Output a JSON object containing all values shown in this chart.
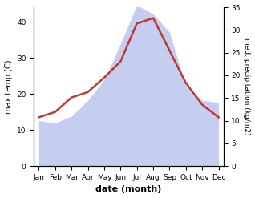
{
  "months": [
    "Jan",
    "Feb",
    "Mar",
    "Apr",
    "May",
    "Jun",
    "Jul",
    "Aug",
    "Sep",
    "Oct",
    "Nov",
    "Dec"
  ],
  "temp": [
    13.5,
    15.0,
    19.0,
    20.5,
    24.5,
    29.0,
    39.5,
    41.0,
    32.0,
    23.0,
    17.0,
    13.5
  ],
  "precip": [
    10.0,
    9.5,
    11.0,
    14.5,
    19.0,
    27.0,
    35.5,
    33.5,
    29.5,
    17.5,
    14.5,
    14.0
  ],
  "temp_color": "#c0392b",
  "precip_fill_color": "#c5cef0",
  "left_label": "max temp (C)",
  "right_label": "med. precipitation (kg/m2)",
  "xlabel": "date (month)",
  "ylim_left": [
    0,
    44
  ],
  "ylim_right": [
    0,
    35
  ],
  "left_ticks": [
    0,
    10,
    20,
    30,
    40
  ],
  "right_ticks": [
    0,
    5,
    10,
    15,
    20,
    25,
    30,
    35
  ],
  "bg_color": "#ffffff",
  "temp_linewidth": 1.8,
  "label_fontsize": 7,
  "tick_fontsize": 6.5
}
